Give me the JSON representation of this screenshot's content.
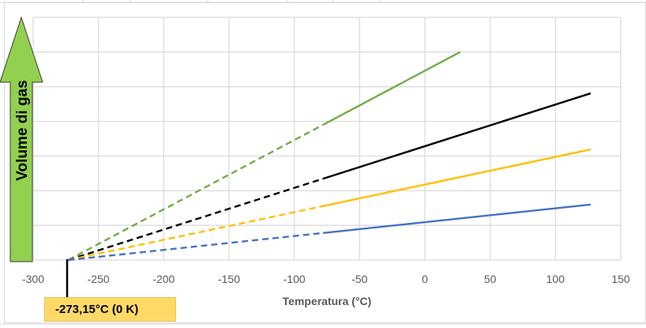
{
  "chart_data": {
    "type": "line",
    "title": "",
    "xlabel": "Temperatura (°C)",
    "ylabel": "Volume di gas",
    "xlim": [
      -300,
      150
    ],
    "ylim": [
      0,
      7
    ],
    "x_ticks": [
      -300,
      -250,
      -200,
      -150,
      -100,
      -50,
      0,
      50,
      100,
      150
    ],
    "x_tick_labels": [
      "-300",
      "-250",
      "-200",
      "-150",
      "-100",
      "-50",
      "0",
      "50",
      "100",
      "150"
    ],
    "y_gridlines": [
      0,
      1,
      2,
      3,
      4,
      5,
      6,
      7
    ],
    "grid": true,
    "extrapolation_to": -78,
    "series": [
      {
        "name": "green",
        "color": "#70ad47",
        "x": [
          -273.15,
          27
        ],
        "y": [
          0,
          6.0
        ]
      },
      {
        "name": "black",
        "color": "#000000",
        "x": [
          -273.15,
          127
        ],
        "y": [
          0,
          4.81
        ]
      },
      {
        "name": "yellow",
        "color": "#ffc000",
        "x": [
          -273.15,
          127
        ],
        "y": [
          0,
          3.19
        ]
      },
      {
        "name": "blue",
        "color": "#4472c4",
        "x": [
          -273.15,
          127
        ],
        "y": [
          0,
          1.6
        ]
      }
    ],
    "annotation": {
      "text": "-273,15°C (0 K)",
      "x": -273.15,
      "fill": "#ffd966"
    },
    "arrow_color": "#92d050"
  }
}
